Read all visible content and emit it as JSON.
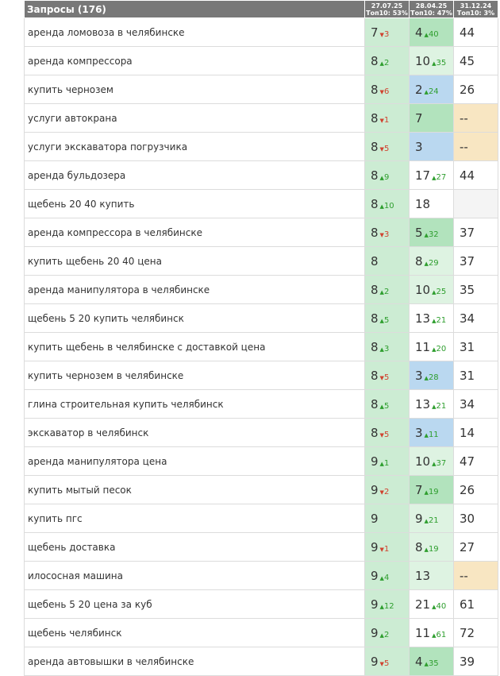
{
  "header": {
    "queries_label": "Запросы (176)",
    "dates": [
      {
        "date": "27.07.25",
        "top10": "Топ10: 53%"
      },
      {
        "date": "28.04.25",
        "top10": "Топ10: 47%"
      },
      {
        "date": "31.12.24",
        "top10": "Топ10: 3%"
      }
    ]
  },
  "colors": {
    "header_bg": "#787878",
    "top_light_green": "#ccecd3",
    "top_green": "#b2e3bd",
    "top_pale_green": "#def3e2",
    "top_blue": "#bad8f0",
    "missing_yellow": "#f8e6c2",
    "empty_gray": "#f4f4f4",
    "delta_up": "#2e9e2e",
    "delta_down": "#d0422f"
  },
  "rows": [
    {
      "query": "аренда ломовоза в челябинске",
      "cells": [
        {
          "pos": "7",
          "delta": "3",
          "dir": "down",
          "bg": "g1"
        },
        {
          "pos": "4",
          "delta": "40",
          "dir": "up",
          "bg": "g2"
        },
        {
          "pos": "44",
          "bg": "w"
        }
      ]
    },
    {
      "query": "аренда компрессора",
      "cells": [
        {
          "pos": "8",
          "delta": "2",
          "dir": "up",
          "bg": "g1"
        },
        {
          "pos": "10",
          "delta": "35",
          "dir": "up",
          "bg": "g3"
        },
        {
          "pos": "45",
          "bg": "w"
        }
      ]
    },
    {
      "query": "купить чернозем",
      "cells": [
        {
          "pos": "8",
          "delta": "6",
          "dir": "down",
          "bg": "g1"
        },
        {
          "pos": "2",
          "delta": "24",
          "dir": "up",
          "bg": "b"
        },
        {
          "pos": "26",
          "bg": "w"
        }
      ]
    },
    {
      "query": "услуги автокрана",
      "cells": [
        {
          "pos": "8",
          "delta": "1",
          "dir": "down",
          "bg": "g1"
        },
        {
          "pos": "7",
          "bg": "g2"
        },
        {
          "pos": "--",
          "bg": "y"
        }
      ]
    },
    {
      "query": "услуги экскаватора погрузчика",
      "cells": [
        {
          "pos": "8",
          "delta": "5",
          "dir": "down",
          "bg": "g1"
        },
        {
          "pos": "3",
          "bg": "b"
        },
        {
          "pos": "--",
          "bg": "y"
        }
      ]
    },
    {
      "query": "аренда бульдозера",
      "cells": [
        {
          "pos": "8",
          "delta": "9",
          "dir": "up",
          "bg": "g1"
        },
        {
          "pos": "17",
          "delta": "27",
          "dir": "up",
          "bg": "w"
        },
        {
          "pos": "44",
          "bg": "w"
        }
      ]
    },
    {
      "query": "щебень 20 40 купить",
      "cells": [
        {
          "pos": "8",
          "delta": "10",
          "dir": "up",
          "bg": "g1"
        },
        {
          "pos": "18",
          "bg": "w"
        },
        {
          "pos": "",
          "bg": "e"
        }
      ]
    },
    {
      "query": "аренда компрессора в челябинске",
      "cells": [
        {
          "pos": "8",
          "delta": "3",
          "dir": "down",
          "bg": "g1"
        },
        {
          "pos": "5",
          "delta": "32",
          "dir": "up",
          "bg": "g2"
        },
        {
          "pos": "37",
          "bg": "w"
        }
      ]
    },
    {
      "query": "купить щебень 20 40 цена",
      "cells": [
        {
          "pos": "8",
          "bg": "g1"
        },
        {
          "pos": "8",
          "delta": "29",
          "dir": "up",
          "bg": "g3"
        },
        {
          "pos": "37",
          "bg": "w"
        }
      ]
    },
    {
      "query": "аренда манипулятора в челябинске",
      "cells": [
        {
          "pos": "8",
          "delta": "2",
          "dir": "up",
          "bg": "g1"
        },
        {
          "pos": "10",
          "delta": "25",
          "dir": "up",
          "bg": "g3"
        },
        {
          "pos": "35",
          "bg": "w"
        }
      ]
    },
    {
      "query": "щебень 5 20 купить челябинск",
      "cells": [
        {
          "pos": "8",
          "delta": "5",
          "dir": "up",
          "bg": "g1"
        },
        {
          "pos": "13",
          "delta": "21",
          "dir": "up",
          "bg": "w"
        },
        {
          "pos": "34",
          "bg": "w"
        }
      ]
    },
    {
      "query": "купить щебень в челябинске с доставкой цена",
      "cells": [
        {
          "pos": "8",
          "delta": "3",
          "dir": "up",
          "bg": "g1"
        },
        {
          "pos": "11",
          "delta": "20",
          "dir": "up",
          "bg": "w"
        },
        {
          "pos": "31",
          "bg": "w"
        }
      ]
    },
    {
      "query": "купить чернозем в челябинске",
      "cells": [
        {
          "pos": "8",
          "delta": "5",
          "dir": "down",
          "bg": "g1"
        },
        {
          "pos": "3",
          "delta": "28",
          "dir": "up",
          "bg": "b"
        },
        {
          "pos": "31",
          "bg": "w"
        }
      ]
    },
    {
      "query": "глина строительная купить челябинск",
      "cells": [
        {
          "pos": "8",
          "delta": "5",
          "dir": "up",
          "bg": "g1"
        },
        {
          "pos": "13",
          "delta": "21",
          "dir": "up",
          "bg": "w"
        },
        {
          "pos": "34",
          "bg": "w"
        }
      ]
    },
    {
      "query": "экскаватор в челябинск",
      "cells": [
        {
          "pos": "8",
          "delta": "5",
          "dir": "down",
          "bg": "g1"
        },
        {
          "pos": "3",
          "delta": "11",
          "dir": "up",
          "bg": "b"
        },
        {
          "pos": "14",
          "bg": "w"
        }
      ]
    },
    {
      "query": "аренда манипулятора цена",
      "cells": [
        {
          "pos": "9",
          "delta": "1",
          "dir": "up",
          "bg": "g1"
        },
        {
          "pos": "10",
          "delta": "37",
          "dir": "up",
          "bg": "g3"
        },
        {
          "pos": "47",
          "bg": "w"
        }
      ]
    },
    {
      "query": "купить мытый песок",
      "cells": [
        {
          "pos": "9",
          "delta": "2",
          "dir": "down",
          "bg": "g1"
        },
        {
          "pos": "7",
          "delta": "19",
          "dir": "up",
          "bg": "g2"
        },
        {
          "pos": "26",
          "bg": "w"
        }
      ]
    },
    {
      "query": "купить пгс",
      "cells": [
        {
          "pos": "9",
          "bg": "g1"
        },
        {
          "pos": "9",
          "delta": "21",
          "dir": "up",
          "bg": "g3"
        },
        {
          "pos": "30",
          "bg": "w"
        }
      ]
    },
    {
      "query": "щебень доставка",
      "cells": [
        {
          "pos": "9",
          "delta": "1",
          "dir": "down",
          "bg": "g1"
        },
        {
          "pos": "8",
          "delta": "19",
          "dir": "up",
          "bg": "g3"
        },
        {
          "pos": "27",
          "bg": "w"
        }
      ]
    },
    {
      "query": "илососная машина",
      "cells": [
        {
          "pos": "9",
          "delta": "4",
          "dir": "up",
          "bg": "g1"
        },
        {
          "pos": "13",
          "bg": "g3"
        },
        {
          "pos": "--",
          "bg": "y"
        }
      ]
    },
    {
      "query": "щебень 5 20 цена за куб",
      "cells": [
        {
          "pos": "9",
          "delta": "12",
          "dir": "up",
          "bg": "g1"
        },
        {
          "pos": "21",
          "delta": "40",
          "dir": "up",
          "bg": "w"
        },
        {
          "pos": "61",
          "bg": "w"
        }
      ]
    },
    {
      "query": "щебень челябинск",
      "cells": [
        {
          "pos": "9",
          "delta": "2",
          "dir": "up",
          "bg": "g1"
        },
        {
          "pos": "11",
          "delta": "61",
          "dir": "up",
          "bg": "w"
        },
        {
          "pos": "72",
          "bg": "w"
        }
      ]
    },
    {
      "query": "аренда автовышки в челябинске",
      "cells": [
        {
          "pos": "9",
          "delta": "5",
          "dir": "down",
          "bg": "g1"
        },
        {
          "pos": "4",
          "delta": "35",
          "dir": "up",
          "bg": "g2"
        },
        {
          "pos": "39",
          "bg": "w"
        }
      ]
    }
  ]
}
